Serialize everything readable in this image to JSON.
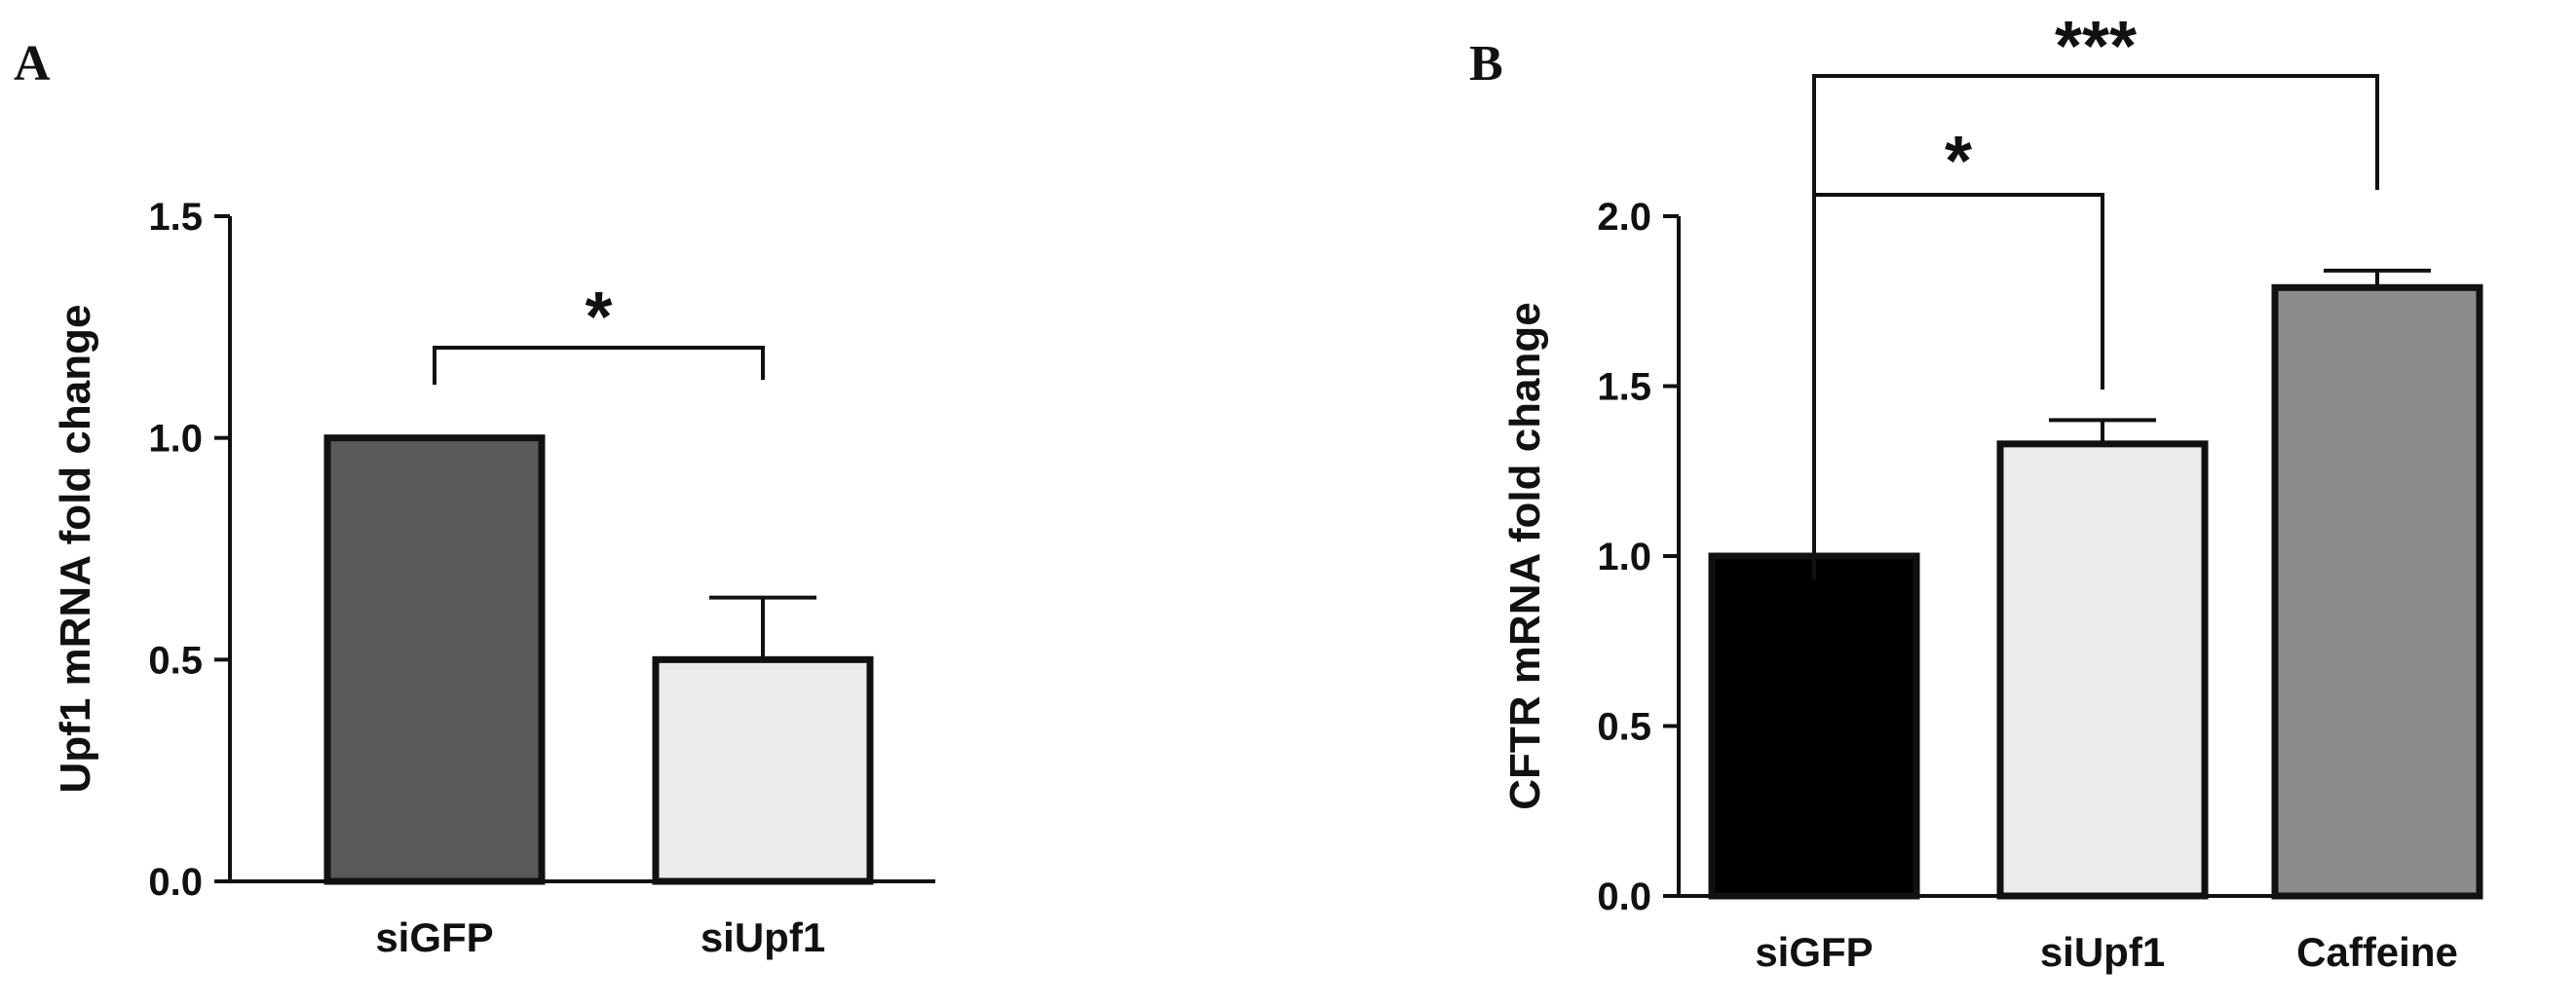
{
  "chart_data": [
    {
      "panel": "A",
      "type": "bar",
      "categories": [
        "siGFP",
        "siUpf1"
      ],
      "values": [
        1.0,
        0.5
      ],
      "errors": [
        0.0,
        0.14
      ],
      "colors": [
        "#595959",
        "#ebebeb"
      ],
      "ylabel": "Upf1 mRNA fold change",
      "ylim": [
        0,
        1.5
      ],
      "yticks": [
        "0.0",
        "0.5",
        "1.0",
        "1.5"
      ],
      "grid": false,
      "comparisons": [
        {
          "from": "siGFP",
          "to": "siUpf1",
          "label": "*"
        }
      ]
    },
    {
      "panel": "B",
      "type": "bar",
      "categories": [
        "siGFP",
        "siUpf1",
        "Caffeine"
      ],
      "values": [
        1.0,
        1.33,
        1.79
      ],
      "errors": [
        0.0,
        0.07,
        0.05
      ],
      "colors": [
        "#000000",
        "#ebebeb",
        "#8c8c8c"
      ],
      "ylabel": "CFTR mRNA fold change",
      "ylim": [
        0,
        2.0
      ],
      "yticks": [
        "0.0",
        "0.5",
        "1.0",
        "1.5",
        "2.0"
      ],
      "grid": false,
      "comparisons": [
        {
          "from": "siGFP",
          "to": "siUpf1",
          "label": "*"
        },
        {
          "from": "siGFP",
          "to": "Caffeine",
          "label": "***"
        }
      ]
    }
  ]
}
